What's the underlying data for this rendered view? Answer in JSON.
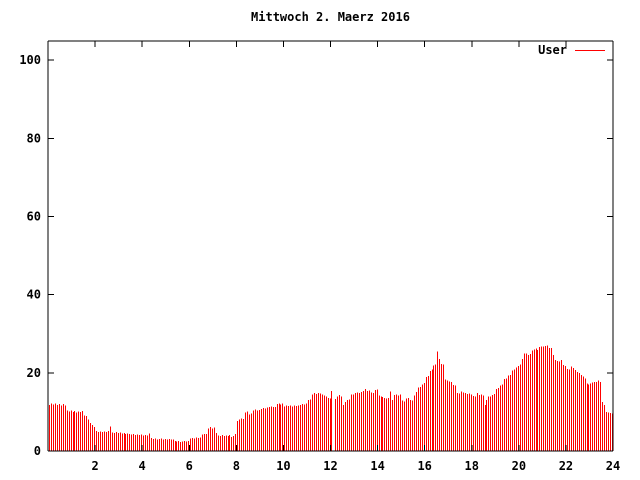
{
  "chart_data": {
    "type": "bar",
    "style": "impulses",
    "title": "Mittwoch 2. Maerz 2016",
    "xlabel": "",
    "ylabel": "",
    "xlim": [
      0,
      24
    ],
    "ylim": [
      0,
      104.9
    ],
    "xticks": [
      2,
      4,
      6,
      8,
      10,
      12,
      14,
      16,
      18,
      20,
      22,
      24
    ],
    "yticks": [
      0,
      20,
      40,
      60,
      80,
      100
    ],
    "grid": false,
    "legend_position": "top-right-inside",
    "sample_interval_minutes": 5,
    "colors": {
      "background": "#ffffff",
      "axis": "#000000",
      "text": "#000000",
      "series": "#ff0000"
    },
    "series": [
      {
        "name": "User",
        "color": "#ff0000",
        "values": [
          11.8,
          12.1,
          11.9,
          12.2,
          11.8,
          12.0,
          11.7,
          12.0,
          11.6,
          10.4,
          10.1,
          10.3,
          10.0,
          10.2,
          9.9,
          10.1,
          10.0,
          10.2,
          9.1,
          8.9,
          8.0,
          7.1,
          6.6,
          6.1,
          5.1,
          4.9,
          5.0,
          4.8,
          5.0,
          4.9,
          5.1,
          6.3,
          4.7,
          4.6,
          4.8,
          4.6,
          4.7,
          4.5,
          4.6,
          4.4,
          4.5,
          4.3,
          4.2,
          4.3,
          4.1,
          4.2,
          4.1,
          4.2,
          4.0,
          4.1,
          4.0,
          4.5,
          3.3,
          3.1,
          3.2,
          3.0,
          3.1,
          3.2,
          3.0,
          3.1,
          3.0,
          3.1,
          2.9,
          3.0,
          2.5,
          2.4,
          2.5,
          2.3,
          2.4,
          2.5,
          2.4,
          2.6,
          3.2,
          3.3,
          3.2,
          3.4,
          3.3,
          3.5,
          4.2,
          4.4,
          4.3,
          5.8,
          6.1,
          5.7,
          6.0,
          4.6,
          4.0,
          3.9,
          4.1,
          3.8,
          4.0,
          3.9,
          4.1,
          3.6,
          3.8,
          4.3,
          7.7,
          8.1,
          8.3,
          8.2,
          9.9,
          10.1,
          9.4,
          9.6,
          10.4,
          10.6,
          10.3,
          10.5,
          10.8,
          11.0,
          10.9,
          11.1,
          11.2,
          11.4,
          11.2,
          11.3,
          12.0,
          12.2,
          11.9,
          12.1,
          11.4,
          11.6,
          11.5,
          11.7,
          11.4,
          11.6,
          11.5,
          11.7,
          11.8,
          12.0,
          11.9,
          12.1,
          13.0,
          13.2,
          14.5,
          14.8,
          14.6,
          14.9,
          14.7,
          14.4,
          14.2,
          14.0,
          13.6,
          13.4,
          15.3,
          0,
          13.3,
          13.9,
          14.3,
          14.0,
          11.8,
          12.6,
          13.0,
          13.2,
          14.4,
          14.5,
          14.8,
          15.0,
          14.9,
          15.1,
          15.4,
          15.8,
          15.3,
          15.5,
          15.0,
          14.9,
          15.6,
          15.7,
          14.2,
          14.0,
          13.8,
          13.6,
          13.4,
          13.5,
          15.2,
          13.0,
          14.3,
          14.4,
          14.2,
          14.4,
          12.9,
          12.7,
          13.4,
          13.5,
          13.0,
          12.9,
          14.2,
          15.1,
          16.2,
          16.4,
          17.0,
          17.4,
          18.9,
          19.2,
          20.5,
          20.8,
          21.9,
          22.1,
          25.5,
          23.6,
          22.3,
          22.1,
          18.3,
          18.1,
          17.8,
          17.6,
          16.9,
          16.7,
          14.9,
          14.7,
          15.2,
          15.0,
          14.8,
          14.6,
          14.7,
          14.5,
          14.1,
          14.0,
          14.8,
          14.3,
          14.4,
          14.2,
          11.8,
          13.0,
          13.9,
          14.0,
          14.3,
          14.6,
          15.9,
          16.1,
          16.8,
          17.0,
          18.4,
          18.6,
          19.3,
          19.5,
          20.6,
          20.8,
          21.4,
          21.7,
          22.1,
          23.6,
          24.9,
          25.0,
          24.6,
          24.8,
          25.7,
          26.0,
          26.2,
          25.8,
          26.6,
          26.8,
          26.7,
          26.9,
          27.0,
          26.4,
          26.3,
          24.6,
          23.3,
          23.0,
          22.9,
          23.3,
          22.0,
          21.8,
          21.0,
          20.9,
          21.6,
          21.2,
          20.7,
          20.2,
          19.9,
          19.5,
          19.0,
          18.5,
          17.3,
          17.0,
          17.3,
          17.5,
          17.7,
          17.6,
          18.0,
          17.7,
          12.6,
          11.8,
          10.0,
          9.8,
          9.7,
          9.6
        ]
      }
    ]
  }
}
